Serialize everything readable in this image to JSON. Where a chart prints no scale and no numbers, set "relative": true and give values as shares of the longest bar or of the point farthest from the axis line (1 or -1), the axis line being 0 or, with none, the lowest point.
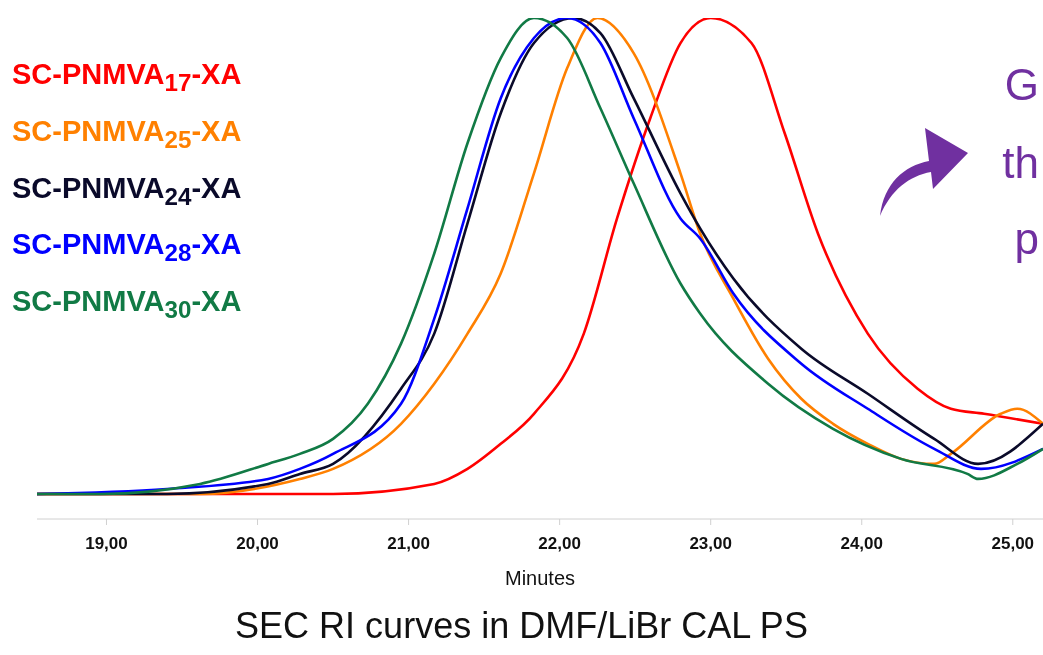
{
  "chart_data": {
    "type": "line",
    "title": "SEC RI curves in DMF/LiBr CAL PS",
    "xlabel": "Minutes",
    "relative": true,
    "legend": "top left",
    "grid": false,
    "marker": "none",
    "line_style": "solid",
    "xlim": [
      18.54,
      25.2
    ],
    "xticks": [
      {
        "value": 19,
        "label": "19,00"
      },
      {
        "value": 20,
        "label": "20,00"
      },
      {
        "value": 21,
        "label": "21,00"
      },
      {
        "value": 22,
        "label": "22,00"
      },
      {
        "value": 23,
        "label": "23,00"
      },
      {
        "value": 24,
        "label": "24,00"
      },
      {
        "value": 25,
        "label": "25,00"
      }
    ],
    "annotations": [
      "G",
      "th",
      "p"
    ],
    "series": [
      {
        "name": "SC-PNMVA$_{17}$-XA",
        "color": "#ff0000",
        "x": [
          18.54,
          20.5,
          21.17,
          21.39,
          21.61,
          21.83,
          22.16,
          22.38,
          22.6,
          22.8,
          23.0,
          23.27,
          23.49,
          23.71,
          24.04,
          24.37,
          24.59,
          24.81,
          25.2
        ],
        "values": [
          0.05,
          0.05,
          0.07,
          0.1,
          0.15,
          0.21,
          0.37,
          0.6,
          0.8,
          0.95,
          1.0,
          0.95,
          0.77,
          0.57,
          0.37,
          0.26,
          0.22,
          0.21,
          0.19
        ]
      },
      {
        "name": "SC-PNMVA$_{25}$-XA",
        "color": "#ff8000",
        "x": [
          18.54,
          19.62,
          20.28,
          20.5,
          20.95,
          21.17,
          21.39,
          21.61,
          21.83,
          22.05,
          22.25,
          22.49,
          22.8,
          22.93,
          23.15,
          23.38,
          23.6,
          23.81,
          24.04,
          24.26,
          24.48,
          24.59,
          24.92,
          25.03,
          25.2
        ],
        "values": [
          0.05,
          0.05,
          0.08,
          0.1,
          0.19,
          0.27,
          0.37,
          0.49,
          0.69,
          0.9,
          1.0,
          0.93,
          0.69,
          0.57,
          0.44,
          0.32,
          0.24,
          0.19,
          0.15,
          0.12,
          0.11,
          0.13,
          0.21,
          0.22,
          0.19
        ]
      },
      {
        "name": "SC-PNMVA$_{24}$-XA",
        "color": "#0a0a2a",
        "x": [
          18.54,
          19.4,
          20.07,
          20.28,
          20.5,
          20.95,
          21.17,
          21.39,
          21.61,
          21.83,
          22.09,
          22.27,
          22.49,
          22.8,
          22.93,
          23.15,
          23.6,
          24.04,
          24.48,
          24.77,
          25.2
        ],
        "values": [
          0.05,
          0.05,
          0.07,
          0.09,
          0.11,
          0.26,
          0.37,
          0.59,
          0.81,
          0.95,
          1.0,
          0.97,
          0.84,
          0.65,
          0.58,
          0.48,
          0.34,
          0.25,
          0.16,
          0.11,
          0.19
        ]
      },
      {
        "name": "SC-PNMVA$_{28}$-XA",
        "color": "#0000ff",
        "x": [
          18.54,
          19.4,
          20.07,
          20.28,
          20.5,
          20.95,
          21.17,
          21.39,
          21.61,
          21.83,
          22.05,
          22.27,
          22.49,
          22.8,
          22.93,
          23.15,
          23.6,
          24.04,
          24.48,
          24.79,
          25.2
        ],
        "values": [
          0.05,
          0.06,
          0.08,
          0.1,
          0.13,
          0.23,
          0.4,
          0.62,
          0.84,
          0.96,
          1.0,
          0.95,
          0.8,
          0.6,
          0.56,
          0.45,
          0.31,
          0.22,
          0.14,
          0.1,
          0.14
        ]
      },
      {
        "name": "SC-PNMVA$_{30}$-XA",
        "color": "#117a45",
        "x": [
          18.54,
          18.96,
          19.62,
          20.07,
          20.28,
          20.5,
          20.73,
          20.95,
          21.17,
          21.39,
          21.61,
          21.83,
          22.05,
          22.27,
          22.49,
          22.8,
          22.93,
          23.38,
          23.81,
          24.26,
          24.7,
          24.77,
          25.03,
          25.2
        ],
        "values": [
          0.05,
          0.05,
          0.07,
          0.11,
          0.13,
          0.16,
          0.23,
          0.35,
          0.53,
          0.75,
          0.92,
          1.0,
          0.96,
          0.82,
          0.67,
          0.47,
          0.41,
          0.27,
          0.18,
          0.12,
          0.09,
          0.08,
          0.11,
          0.14
        ]
      }
    ]
  }
}
